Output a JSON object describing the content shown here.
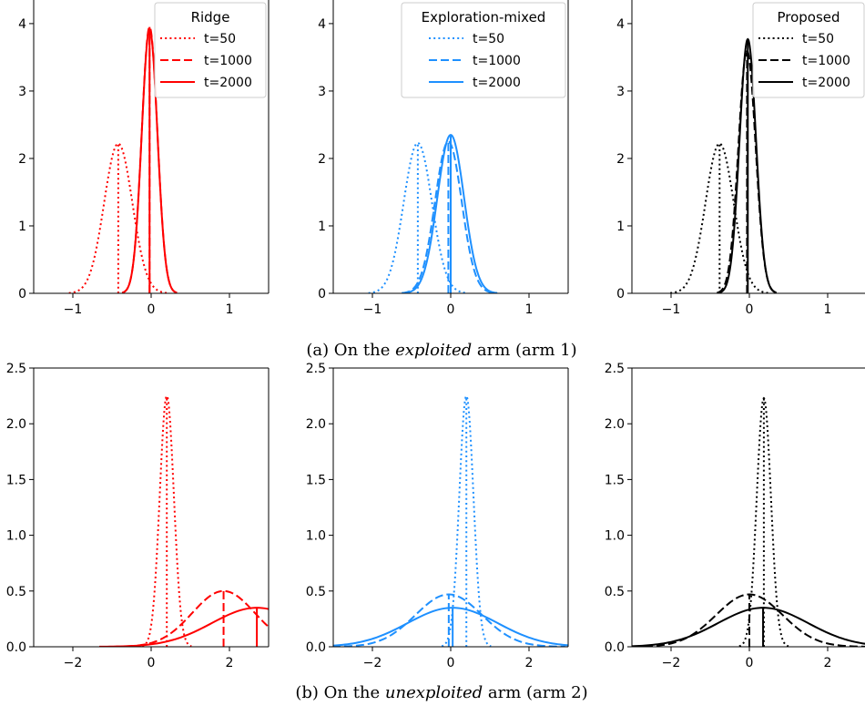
{
  "captions": {
    "top": {
      "prefix": "(a) On the ",
      "emph": "exploited",
      "suffix": " arm (arm 1)"
    },
    "bottom": {
      "prefix": "(b) On the ",
      "emph": "unexploited",
      "suffix": " arm (arm 2)"
    }
  },
  "chart_data": [
    {
      "type": "line",
      "id": "a1",
      "legend_title": "Ridge",
      "color": "#ff0000",
      "xlim": [
        -1.5,
        1.5
      ],
      "ylim": [
        0,
        4.35
      ],
      "xticks": [
        -1,
        0,
        1
      ],
      "yticks": [
        0,
        1,
        2,
        3,
        4
      ],
      "series": [
        {
          "name": "t=50",
          "style": "dotted",
          "mean": -0.42,
          "sd": 0.18,
          "peak": 2.22
        },
        {
          "name": "t=1000",
          "style": "dashed",
          "mean": -0.02,
          "sd": 0.1,
          "peak": 3.95
        },
        {
          "name": "t=2000",
          "style": "solid",
          "mean": -0.02,
          "sd": 0.1,
          "peak": 3.92
        }
      ]
    },
    {
      "type": "line",
      "id": "a2",
      "legend_title": "Exploration-mixed",
      "color": "#1e90ff",
      "xlim": [
        -1.5,
        1.5
      ],
      "ylim": [
        0,
        4.35
      ],
      "xticks": [
        -1,
        0,
        1
      ],
      "yticks": [
        0,
        1,
        2,
        3,
        4
      ],
      "series": [
        {
          "name": "t=50",
          "style": "dotted",
          "mean": -0.42,
          "sd": 0.18,
          "peak": 2.23
        },
        {
          "name": "t=1000",
          "style": "dashed",
          "mean": -0.03,
          "sd": 0.17,
          "peak": 2.25
        },
        {
          "name": "t=2000",
          "style": "solid",
          "mean": 0.0,
          "sd": 0.17,
          "peak": 2.35
        }
      ]
    },
    {
      "type": "line",
      "id": "a3",
      "legend_title": "Proposed",
      "color": "#000000",
      "xlim": [
        -1.5,
        1.5
      ],
      "ylim": [
        0,
        4.35
      ],
      "xticks": [
        -1,
        0,
        1
      ],
      "yticks": [
        0,
        1,
        2,
        3,
        4
      ],
      "series": [
        {
          "name": "t=50",
          "style": "dotted",
          "mean": -0.38,
          "sd": 0.18,
          "peak": 2.22
        },
        {
          "name": "t=1000",
          "style": "dashed",
          "mean": -0.03,
          "sd": 0.11,
          "peak": 3.6
        },
        {
          "name": "t=2000",
          "style": "solid",
          "mean": -0.02,
          "sd": 0.105,
          "peak": 3.77
        }
      ]
    },
    {
      "type": "line",
      "id": "b1",
      "color": "#ff0000",
      "xlim": [
        -3,
        3
      ],
      "ylim": [
        0,
        2.5
      ],
      "xticks": [
        -2,
        0,
        2
      ],
      "yticks": [
        0,
        0.5,
        1.0,
        1.5,
        2.0,
        2.5
      ],
      "series": [
        {
          "style": "dotted",
          "mean": 0.4,
          "sd": 0.18,
          "peak": 2.25
        },
        {
          "style": "dashed",
          "mean": 1.85,
          "sd": 0.8,
          "peak": 0.5
        },
        {
          "style": "solid",
          "mean": 2.7,
          "sd": 1.15,
          "peak": 0.35
        }
      ]
    },
    {
      "type": "line",
      "id": "b2",
      "color": "#1e90ff",
      "xlim": [
        -3,
        3
      ],
      "ylim": [
        0,
        2.5
      ],
      "xticks": [
        -2,
        0,
        2
      ],
      "yticks": [
        0,
        0.5,
        1.0,
        1.5,
        2.0,
        2.5
      ],
      "series": [
        {
          "style": "dotted",
          "mean": 0.4,
          "sd": 0.18,
          "peak": 2.25
        },
        {
          "style": "dashed",
          "mean": -0.05,
          "sd": 0.85,
          "peak": 0.47
        },
        {
          "style": "solid",
          "mean": 0.05,
          "sd": 1.15,
          "peak": 0.35
        }
      ]
    },
    {
      "type": "line",
      "id": "b3",
      "color": "#000000",
      "xlim": [
        -3,
        3
      ],
      "ylim": [
        0,
        2.5
      ],
      "xticks": [
        -2,
        0,
        2
      ],
      "yticks": [
        0,
        0.5,
        1.0,
        1.5,
        2.0,
        2.5
      ],
      "series": [
        {
          "style": "dotted",
          "mean": 0.37,
          "sd": 0.18,
          "peak": 2.23
        },
        {
          "style": "dashed",
          "mean": 0.0,
          "sd": 0.85,
          "peak": 0.47
        },
        {
          "style": "solid",
          "mean": 0.35,
          "sd": 1.15,
          "peak": 0.35
        }
      ]
    }
  ]
}
